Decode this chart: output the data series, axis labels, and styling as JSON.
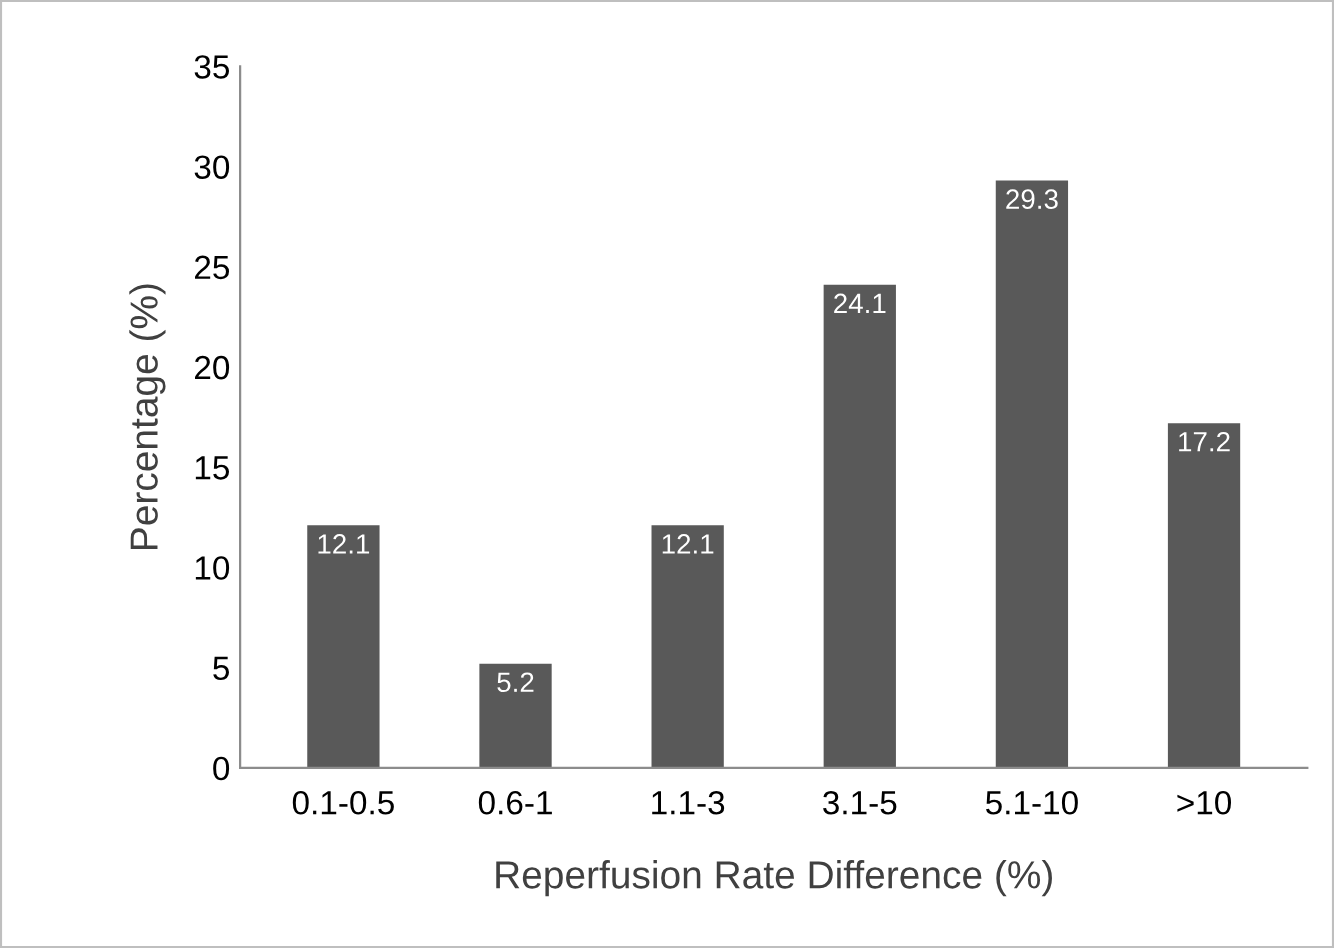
{
  "chart_data": {
    "type": "bar",
    "xlabel": "Reperfusion Rate Difference (%)",
    "ylabel": "Percentage (%)",
    "categories": [
      "0.1-0.5",
      "0.6-1",
      "1.1-3",
      "3.1-5",
      "5.1-10",
      ">10"
    ],
    "values": [
      12.1,
      5.2,
      12.1,
      24.1,
      29.3,
      17.2
    ],
    "color": "#595959",
    "ylim": [
      0,
      35
    ],
    "yticks": [
      0,
      5,
      10,
      15,
      20,
      25,
      30,
      35
    ],
    "grid": false,
    "data_labels": true
  }
}
